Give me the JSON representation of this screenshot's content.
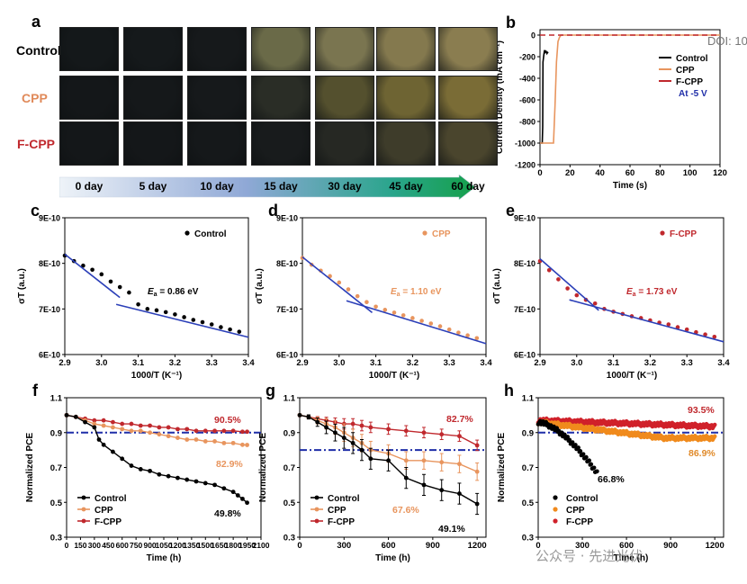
{
  "panel_a": {
    "label": "a",
    "rows": [
      "Control",
      "CPP",
      "F-CPP"
    ],
    "row_colors": [
      "#000000",
      "#e08a5a",
      "#c0282d"
    ],
    "days": [
      "0 day",
      "5 day",
      "10 day",
      "15 day",
      "30 day",
      "45 day",
      "60 day"
    ],
    "photo_colors": [
      [
        "#14181a",
        "#15191b",
        "#16191b",
        "#6a6a48",
        "#7a7550",
        "#84794e",
        "#8a7d50"
      ],
      [
        "#141719",
        "#15181a",
        "#16191b",
        "#2a2d26",
        "#54502e",
        "#6e6433",
        "#7a6c36"
      ],
      [
        "#141719",
        "#141719",
        "#15181a",
        "#181b1c",
        "#262823",
        "#3e3c2a",
        "#4a452d"
      ]
    ]
  },
  "watermark": {
    "doi": "DOI: 10",
    "wechat": "公众号 · 先进光伏"
  },
  "chart_data": [
    {
      "panel": "b",
      "type": "line",
      "title": "",
      "xlabel": "Time (s)",
      "ylabel": "Current Density (mA cm⁻²)",
      "xlim": [
        0,
        120
      ],
      "ylim": [
        -1200,
        50
      ],
      "xticks": [
        "0",
        "20",
        "40",
        "60",
        "80",
        "100",
        "120"
      ],
      "yticks": [
        "0",
        "-200",
        "-400",
        "-600",
        "-800",
        "-1000",
        "-1200"
      ],
      "legend": "top-right",
      "annotation": "At -5 V",
      "series": [
        {
          "name": "Control",
          "color": "#000000",
          "x": [
            0,
            1.5,
            1.8,
            2,
            2.6,
            3,
            3.5,
            4,
            4.6,
            5,
            5.5
          ],
          "y": [
            -1000,
            -1000,
            -850,
            -250,
            -180,
            -140,
            -160,
            -150,
            -170,
            -160,
            -165
          ]
        },
        {
          "name": "CPP",
          "color": "#e8955e",
          "x": [
            0,
            6,
            6.5,
            9,
            10,
            11,
            12,
            13,
            14,
            15,
            120
          ],
          "y": [
            -1000,
            -1000,
            -1000,
            -1000,
            -650,
            -250,
            -60,
            -20,
            0,
            0,
            0
          ]
        },
        {
          "name": "F-CPP",
          "color": "#c0282d",
          "dashed": true,
          "x": [
            0,
            120
          ],
          "y": [
            0,
            0
          ]
        }
      ]
    },
    {
      "panel": "c",
      "type": "scatter",
      "xlabel": "1000/T (K⁻¹)",
      "ylabel": "σT (a.u.)",
      "xlim": [
        2.9,
        3.4
      ],
      "xticks": [
        "2.9",
        "3.0",
        "3.1",
        "3.2",
        "3.3",
        "3.4"
      ],
      "yticks": [
        "6E-10",
        "7E-10",
        "8E-10",
        "9E-10"
      ],
      "legend": "top-right",
      "annotation": {
        "prefix": "E",
        "sub": "a",
        "text": " = 0.86 eV"
      },
      "series": [
        {
          "name": "Control",
          "color": "#000000",
          "x": [
            2.9,
            2.925,
            2.95,
            2.975,
            3.0,
            3.025,
            3.05,
            3.075,
            3.1,
            3.125,
            3.15,
            3.175,
            3.2,
            3.225,
            3.25,
            3.275,
            3.3,
            3.325,
            3.35,
            3.375
          ],
          "y": [
            8.17,
            8.05,
            7.95,
            7.86,
            7.76,
            7.6,
            7.48,
            7.36,
            7.1,
            7.0,
            6.97,
            6.93,
            6.88,
            6.82,
            6.76,
            6.71,
            6.66,
            6.6,
            6.55,
            6.5
          ]
        }
      ],
      "fits": [
        [
          [
            2.9,
            8.2
          ],
          [
            3.05,
            7.25
          ]
        ],
        [
          [
            3.04,
            7.1
          ],
          [
            3.4,
            6.38
          ]
        ]
      ]
    },
    {
      "panel": "d",
      "type": "scatter",
      "xlabel": "1000/T (K⁻¹)",
      "ylabel": "σT (a.u.)",
      "xlim": [
        2.9,
        3.4
      ],
      "xticks": [
        "2.9",
        "3.0",
        "3.1",
        "3.2",
        "3.3",
        "3.4"
      ],
      "yticks": [
        "6E-10",
        "7E-10",
        "8E-10",
        "9E-10"
      ],
      "legend": "top-right",
      "annotation": {
        "prefix": "E",
        "sub": "a",
        "text": " = 1.10 eV"
      },
      "series": [
        {
          "name": "CPP",
          "color": "#e8955e",
          "x": [
            2.9,
            2.925,
            2.95,
            2.975,
            3.0,
            3.025,
            3.05,
            3.075,
            3.1,
            3.125,
            3.15,
            3.175,
            3.2,
            3.225,
            3.25,
            3.275,
            3.3,
            3.325,
            3.35,
            3.375
          ],
          "y": [
            8.12,
            7.97,
            7.84,
            7.72,
            7.58,
            7.43,
            7.28,
            7.15,
            7.05,
            6.98,
            6.92,
            6.86,
            6.8,
            6.74,
            6.68,
            6.62,
            6.55,
            6.48,
            6.42,
            6.36
          ]
        }
      ],
      "fits": [
        [
          [
            2.9,
            8.14
          ],
          [
            3.09,
            6.92
          ]
        ],
        [
          [
            3.02,
            7.18
          ],
          [
            3.4,
            6.24
          ]
        ]
      ]
    },
    {
      "panel": "e",
      "type": "scatter",
      "xlabel": "1000/T (K⁻¹)",
      "ylabel": "σT (a.u.)",
      "xlim": [
        2.9,
        3.4
      ],
      "xticks": [
        "2.9",
        "3.0",
        "3.1",
        "3.2",
        "3.3",
        "3.4"
      ],
      "yticks": [
        "6E-10",
        "7E-10",
        "8E-10",
        "9E-10"
      ],
      "legend": "top-right",
      "annotation": {
        "prefix": "E",
        "sub": "a",
        "text": " = 1.73 eV"
      },
      "series": [
        {
          "name": "F-CPP",
          "color": "#c0282d",
          "x": [
            2.9,
            2.925,
            2.95,
            2.975,
            3.0,
            3.025,
            3.05,
            3.075,
            3.1,
            3.125,
            3.15,
            3.175,
            3.2,
            3.225,
            3.25,
            3.275,
            3.3,
            3.325,
            3.35,
            3.375
          ],
          "y": [
            8.05,
            7.85,
            7.65,
            7.45,
            7.3,
            7.2,
            7.12,
            7.0,
            6.94,
            6.89,
            6.84,
            6.8,
            6.75,
            6.7,
            6.66,
            6.6,
            6.55,
            6.49,
            6.44,
            6.39
          ]
        }
      ],
      "fits": [
        [
          [
            2.9,
            8.1
          ],
          [
            3.06,
            6.97
          ]
        ],
        [
          [
            2.98,
            7.2
          ],
          [
            3.4,
            6.28
          ]
        ]
      ]
    },
    {
      "panel": "f",
      "type": "line",
      "xlabel": "Time (h)",
      "ylabel": "Normalized PCE",
      "xlim": [
        0,
        2100
      ],
      "ylim": [
        0.3,
        1.1
      ],
      "xticks": [
        "0",
        "150",
        "300",
        "450",
        "600",
        "750",
        "900",
        "1050",
        "1200",
        "1350",
        "1500",
        "1650",
        "1800",
        "1950",
        "2100"
      ],
      "yticks": [
        "0.3",
        "0.5",
        "0.7",
        "0.9",
        "1.1"
      ],
      "legend": "bottom-left",
      "hline": 0.9,
      "end_labels": [
        "90.5%",
        "82.9%",
        "49.8%"
      ],
      "series": [
        {
          "name": "Control",
          "color": "#000000",
          "x": [
            0,
            100,
            200,
            300,
            350,
            400,
            500,
            600,
            700,
            800,
            900,
            1000,
            1100,
            1200,
            1300,
            1400,
            1500,
            1600,
            1700,
            1800,
            1850,
            1900,
            1950
          ],
          "y": [
            1.0,
            0.99,
            0.96,
            0.93,
            0.86,
            0.83,
            0.79,
            0.75,
            0.71,
            0.69,
            0.68,
            0.66,
            0.65,
            0.64,
            0.63,
            0.62,
            0.61,
            0.6,
            0.58,
            0.56,
            0.54,
            0.52,
            0.498
          ]
        },
        {
          "name": "CPP",
          "color": "#e8955e",
          "x": [
            0,
            100,
            200,
            300,
            400,
            500,
            600,
            700,
            800,
            900,
            1000,
            1100,
            1200,
            1300,
            1400,
            1500,
            1600,
            1700,
            1800,
            1900,
            1950
          ],
          "y": [
            1.0,
            0.99,
            0.97,
            0.95,
            0.94,
            0.93,
            0.92,
            0.91,
            0.91,
            0.9,
            0.89,
            0.88,
            0.87,
            0.86,
            0.86,
            0.85,
            0.85,
            0.84,
            0.84,
            0.83,
            0.829
          ]
        },
        {
          "name": "F-CPP",
          "color": "#c0282d",
          "x": [
            0,
            100,
            200,
            300,
            400,
            500,
            600,
            700,
            800,
            900,
            1000,
            1100,
            1200,
            1300,
            1400,
            1500,
            1600,
            1700,
            1800,
            1900,
            1950
          ],
          "y": [
            1.0,
            0.99,
            0.98,
            0.97,
            0.97,
            0.96,
            0.95,
            0.95,
            0.94,
            0.94,
            0.93,
            0.93,
            0.92,
            0.92,
            0.91,
            0.91,
            0.91,
            0.91,
            0.91,
            0.905,
            0.905
          ]
        }
      ]
    },
    {
      "panel": "g",
      "type": "line",
      "xlabel": "Time (h)",
      "ylabel": "Normalized PCE",
      "xlim": [
        0,
        1260
      ],
      "ylim": [
        0.3,
        1.1
      ],
      "xticks": [
        "0",
        "300",
        "600",
        "900",
        "1200"
      ],
      "yticks": [
        "0.3",
        "0.5",
        "0.7",
        "0.9",
        "1.1"
      ],
      "legend": "bottom-left",
      "hline": 0.8,
      "end_labels": [
        "82.7%",
        "67.6%",
        "49.1%"
      ],
      "series": [
        {
          "name": "Control",
          "color": "#000000",
          "x": [
            0,
            60,
            120,
            180,
            240,
            300,
            360,
            420,
            480,
            600,
            720,
            840,
            960,
            1080,
            1200
          ],
          "y": [
            1.0,
            0.99,
            0.96,
            0.93,
            0.9,
            0.87,
            0.84,
            0.8,
            0.75,
            0.74,
            0.64,
            0.6,
            0.57,
            0.55,
            0.491
          ],
          "err": 0.06
        },
        {
          "name": "CPP",
          "color": "#e8955e",
          "x": [
            0,
            60,
            120,
            180,
            240,
            300,
            360,
            420,
            480,
            600,
            720,
            840,
            960,
            1080,
            1200
          ],
          "y": [
            1.0,
            0.99,
            0.97,
            0.95,
            0.93,
            0.9,
            0.87,
            0.84,
            0.8,
            0.78,
            0.74,
            0.74,
            0.73,
            0.72,
            0.676
          ],
          "err": 0.05
        },
        {
          "name": "F-CPP",
          "color": "#c0282d",
          "x": [
            0,
            60,
            120,
            180,
            240,
            300,
            360,
            420,
            480,
            600,
            720,
            840,
            960,
            1080,
            1200
          ],
          "y": [
            1.0,
            0.99,
            0.98,
            0.97,
            0.96,
            0.95,
            0.95,
            0.94,
            0.93,
            0.92,
            0.91,
            0.9,
            0.89,
            0.88,
            0.827
          ],
          "err": 0.03
        }
      ]
    },
    {
      "panel": "h",
      "type": "scatter",
      "xlabel": "Time (h)",
      "ylabel": "Normalized PCE",
      "xlim": [
        0,
        1260
      ],
      "ylim": [
        0.3,
        1.1
      ],
      "xticks": [
        "0",
        "300",
        "600",
        "900",
        "1200"
      ],
      "yticks": [
        "0.3",
        "0.5",
        "0.7",
        "0.9",
        "1.1"
      ],
      "legend": "bottom-left",
      "hline": 0.9,
      "end_labels": [
        "93.5%",
        "86.9%",
        "66.8%"
      ],
      "series": [
        {
          "name": "Control",
          "color": "#000000",
          "x_end": 400,
          "start": 0.96,
          "end": 0.668,
          "curve": "decay"
        },
        {
          "name": "CPP",
          "color": "#f08a1c",
          "x_end": 1200,
          "start": 0.96,
          "end": 0.869,
          "curve": "slow"
        },
        {
          "name": "F-CPP",
          "color": "#d0212a",
          "x_end": 1200,
          "start": 0.97,
          "end": 0.935,
          "curve": "flat"
        }
      ]
    }
  ]
}
